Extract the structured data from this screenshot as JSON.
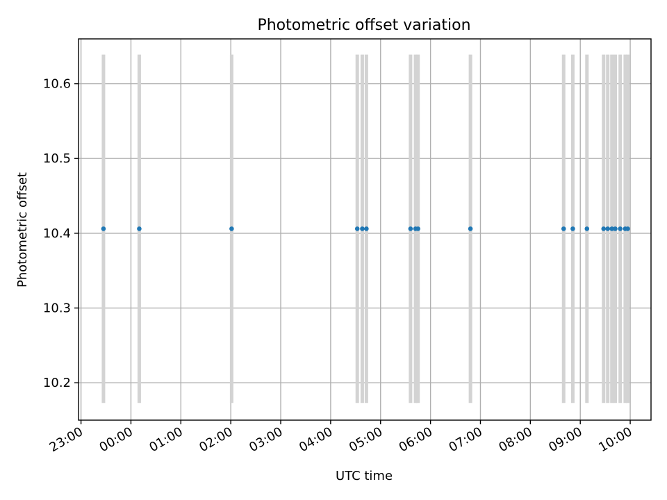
{
  "chart_data": {
    "type": "scatter",
    "title": "Photometric offset variation",
    "xlabel": "UTC time",
    "ylabel": "Photometric offset",
    "x_axis_type": "time",
    "xlim": [
      "22:57",
      "10:25"
    ],
    "ylim": [
      10.15,
      10.66
    ],
    "x_ticks": [
      "23:00",
      "00:00",
      "01:00",
      "02:00",
      "03:00",
      "04:00",
      "05:00",
      "06:00",
      "07:00",
      "08:00",
      "09:00",
      "10:00"
    ],
    "y_ticks": [
      10.2,
      10.3,
      10.4,
      10.5,
      10.6
    ],
    "grid": true,
    "error_bar_range": [
      10.173,
      10.639
    ],
    "error_bar_color": "#d3d3d3",
    "point_color": "#1f77b4",
    "points": [
      {
        "x": "23:27",
        "y": 10.406
      },
      {
        "x": "00:10",
        "y": 10.406
      },
      {
        "x": "02:01",
        "y": 10.406
      },
      {
        "x": "04:32",
        "y": 10.406
      },
      {
        "x": "04:38",
        "y": 10.406
      },
      {
        "x": "04:43",
        "y": 10.406
      },
      {
        "x": "05:36",
        "y": 10.406
      },
      {
        "x": "05:42",
        "y": 10.406
      },
      {
        "x": "05:45",
        "y": 10.406
      },
      {
        "x": "06:48",
        "y": 10.406
      },
      {
        "x": "08:40",
        "y": 10.406
      },
      {
        "x": "08:51",
        "y": 10.406
      },
      {
        "x": "09:08",
        "y": 10.406
      },
      {
        "x": "09:28",
        "y": 10.406
      },
      {
        "x": "09:33",
        "y": 10.406
      },
      {
        "x": "09:38",
        "y": 10.406
      },
      {
        "x": "09:42",
        "y": 10.406
      },
      {
        "x": "09:48",
        "y": 10.406
      },
      {
        "x": "09:54",
        "y": 10.406
      },
      {
        "x": "09:57",
        "y": 10.406
      }
    ]
  }
}
